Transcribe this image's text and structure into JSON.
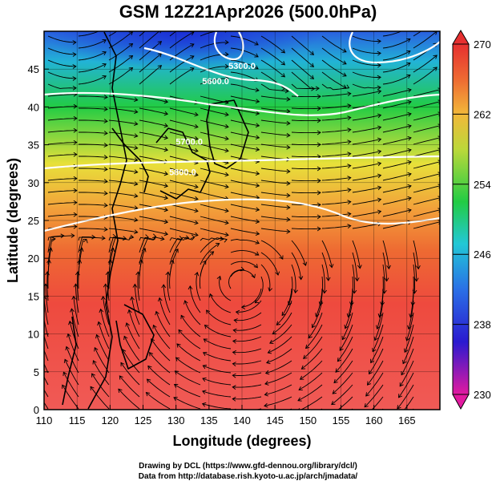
{
  "title": "GSM 12Z21Apr2026 (500.0hPa)",
  "xlabel": "Longitude (degrees)",
  "ylabel": "Latitude  (degrees)",
  "x_ticks": [
    "110",
    "115",
    "120",
    "125",
    "130",
    "135",
    "140",
    "145",
    "150",
    "155",
    "160",
    "165"
  ],
  "y_ticks": [
    "0",
    "5",
    "10",
    "15",
    "20",
    "25",
    "30",
    "35",
    "40",
    "45"
  ],
  "colorbar_ticks": [
    "230",
    "238",
    "246",
    "254",
    "262",
    "270"
  ],
  "contour_labels": [
    "5300.0",
    "5600.0",
    "5700.0",
    "5800.0"
  ],
  "credits": {
    "line1": "Drawing by DCL (https://www.gfd-dennou.org/library/dcl/)",
    "line2": "Data from http://database.rish.kyoto-u.ac.jp/arch/jmadata/"
  },
  "chart_data": {
    "type": "heatmap",
    "title": "GSM 12Z21Apr2026 (500.0hPa)",
    "xlabel": "Longitude (degrees)",
    "ylabel": "Latitude  (degrees)",
    "xlim": [
      110,
      170
    ],
    "ylim": [
      0,
      50
    ],
    "colorbar": {
      "min": 230,
      "max": 270,
      "ticks": [
        230,
        238,
        246,
        254,
        262,
        270
      ]
    },
    "contours": [
      {
        "label": "5300.0",
        "lon": 140,
        "lat": 45
      },
      {
        "label": "5600.0",
        "lon": 136,
        "lat": 43
      },
      {
        "label": "5700.0",
        "lon": 132,
        "lat": 35
      },
      {
        "label": "5800.0",
        "lon": 131,
        "lat": 31
      }
    ],
    "grid": true
  }
}
